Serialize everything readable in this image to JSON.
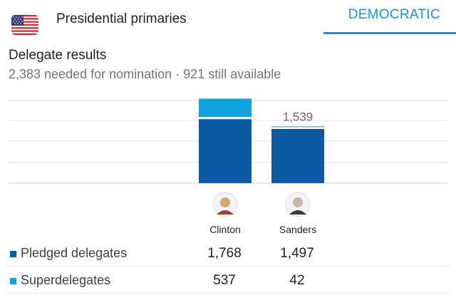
{
  "header": {
    "title": "Presidential primaries",
    "flag_icon": "us-flag-icon"
  },
  "tab": {
    "label": "DEMOCRATIC",
    "color": "#1a8fd6"
  },
  "section": {
    "title": "Delegate results",
    "subtitle": "2,383 needed for nomination · 921 still available"
  },
  "colors": {
    "pledged": "#0b5aa2",
    "super": "#0fa1e0",
    "grid": "#e6e6e6"
  },
  "chart_data": {
    "type": "bar",
    "stacked": true,
    "categories": [
      "Clinton",
      "Sanders"
    ],
    "totals": [
      "2,305",
      "1,539"
    ],
    "series": [
      {
        "name": "Pledged delegates",
        "values": [
          1768,
          1497
        ]
      },
      {
        "name": "Superdelegates",
        "values": [
          537,
          42
        ]
      }
    ],
    "ylim": [
      0,
      2383
    ],
    "grid": true
  },
  "rows": [
    {
      "label": "Pledged delegates",
      "values": [
        "1,768",
        "1,497"
      ],
      "color": "#0b5aa2"
    },
    {
      "label": "Superdelegates",
      "values": [
        "537",
        "42"
      ],
      "color": "#0fa1e0"
    }
  ]
}
